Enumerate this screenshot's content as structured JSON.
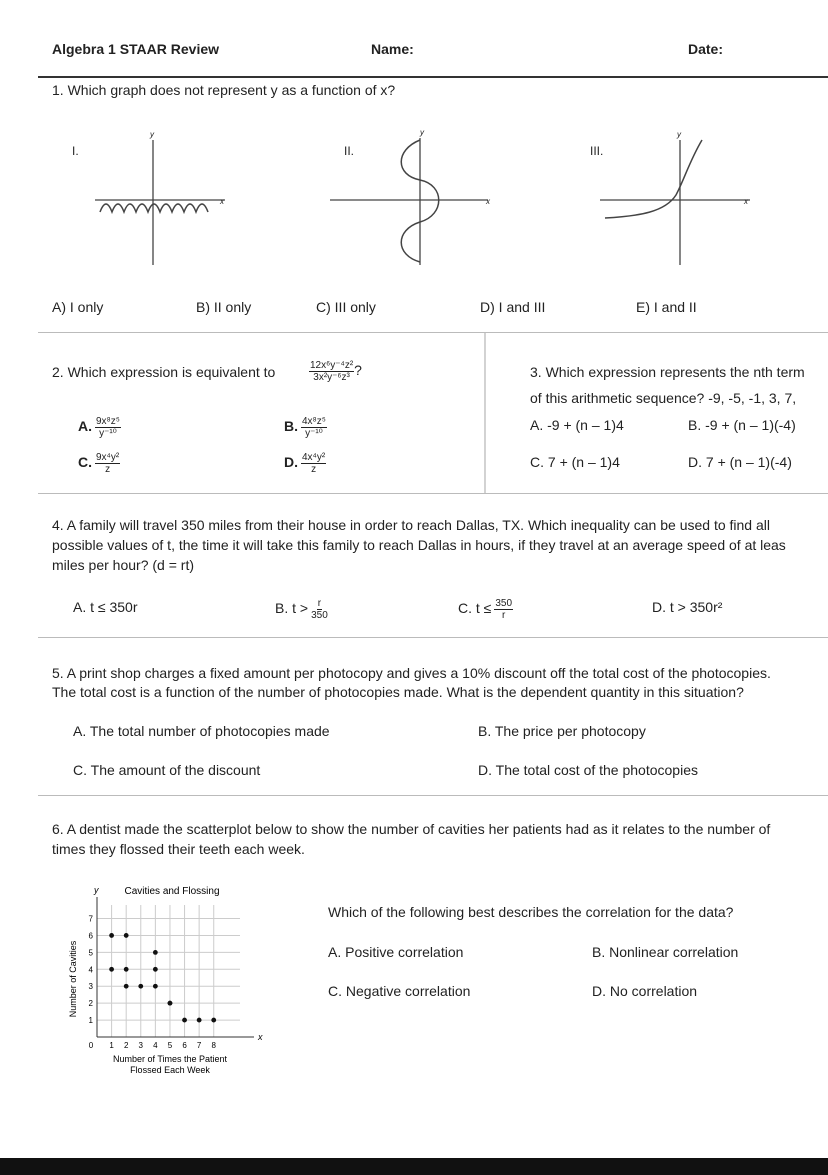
{
  "header": {
    "title": "Algebra 1 STAAR Review",
    "name": "Name:",
    "date": "Date:"
  },
  "q1": {
    "question": "1. Which graph does not represent y as a function of x?",
    "graphs": [
      {
        "label": "I.",
        "x": "x",
        "y": "y"
      },
      {
        "label": "II.",
        "x": "x",
        "y": "y"
      },
      {
        "label": "III.",
        "x": "x",
        "y": "y"
      }
    ],
    "choices": [
      "A) I only",
      "B) II only",
      "C) III only",
      "D) I and III",
      "E) I and II"
    ]
  },
  "q2": {
    "question": "2. Which expression is equivalent to",
    "num": "12x⁶y⁻⁴z²",
    "den": "3x²y⁻⁶z³",
    "mark": "?",
    "choices": [
      {
        "letter": "A.",
        "num": "9x⁸z⁵",
        "den": "y⁻¹⁰"
      },
      {
        "letter": "B.",
        "num": "4x⁸z⁵",
        "den": "y⁻¹⁰"
      },
      {
        "letter": "C.",
        "num": "9x⁴y²",
        "den": "z"
      },
      {
        "letter": "D.",
        "num": "4x⁴y²",
        "den": "z"
      }
    ]
  },
  "q3": {
    "lines": [
      "3. Which expression represents the nth term",
      "of this arithmetic sequence? -9, -5, -1, 3, 7,"
    ],
    "choices": [
      "A. -9 + (n – 1)4",
      "B. -9 + (n – 1)(-4)",
      "C. 7 + (n – 1)4",
      "D. 7 + (n – 1)(-4)"
    ]
  },
  "q4": {
    "lines": [
      "4. A family will travel 350 miles from their house in order to reach Dallas, TX. Which inequality can be used to find all",
      "possible values of t, the time it will take this family to reach Dallas in hours, if they travel at an average speed of at leas",
      "miles per hour? (d = rt)"
    ],
    "choices": {
      "a": "A. t ≤ 350r",
      "b": {
        "prefix": "B. t >",
        "num": "r",
        "den": "350"
      },
      "c": {
        "prefix": "C. t ≤",
        "num": "350",
        "den": "r"
      },
      "d": "D. t > 350r²"
    }
  },
  "q5": {
    "lines": [
      "5. A print shop charges a fixed amount per photocopy and gives a 10% discount off the total cost of the photocopies.",
      "The total cost is a function of the number of photocopies made. What is the dependent quantity in this situation?"
    ],
    "choices": [
      "A. The total number of photocopies made",
      "B. The price per photocopy",
      "C. The amount of the discount",
      "D. The total cost of the photocopies"
    ]
  },
  "q6": {
    "lines": [
      "6. A dentist made the scatterplot below to show the number of cavities her patients had as it relates to the number of",
      "times they flossed their teeth each week."
    ],
    "chart": {
      "type": "scatter",
      "title": "Cavities and Flossing",
      "x_label": [
        "Number of Times the Patient",
        "Flossed Each Week"
      ],
      "y_label": "Number of Cavities",
      "x_axis": "x",
      "y_axis": "y",
      "x": [
        1,
        2,
        4,
        1,
        2,
        4,
        2,
        3,
        4,
        5,
        5,
        6,
        7,
        8
      ],
      "y": [
        6,
        6,
        5,
        4,
        4,
        4,
        3,
        3,
        3,
        2,
        2,
        1,
        1,
        1
      ],
      "xlim": [
        0,
        9.8
      ],
      "ylim": [
        0,
        7.8
      ],
      "xticks": [
        0,
        1,
        2,
        3,
        4,
        5,
        6,
        7,
        8
      ],
      "yticks": [
        1,
        2,
        3,
        4,
        5,
        6,
        7
      ],
      "grid": true
    },
    "prompt": "Which of the following best describes the correlation for the data?",
    "choices": [
      "A. Positive correlation",
      "B. Nonlinear correlation",
      "C. Negative correlation",
      "D. No correlation"
    ]
  }
}
